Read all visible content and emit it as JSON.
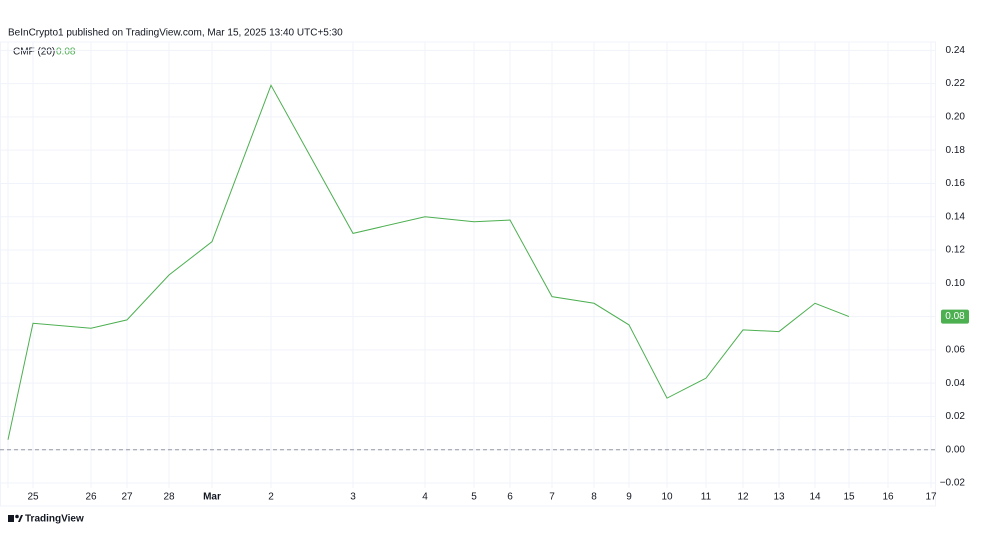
{
  "header": "BeInCrypto1 published on TradingView.com, Mar 15, 2025 13:40 UTC+5:30",
  "footer": "TradingView",
  "chart_data": {
    "type": "line",
    "categories": [
      null,
      "25",
      "26",
      "27",
      "28",
      "Mar",
      "2",
      "3",
      "4",
      "5",
      "6",
      "7",
      "8",
      "9",
      "10",
      "11",
      "12",
      "13",
      "14",
      "15",
      "16",
      "17"
    ],
    "series": [
      {
        "name": "CMF (20)",
        "color": "#4caf50",
        "values": [
          0.006,
          0.076,
          0.073,
          0.078,
          0.105,
          0.125,
          0.219,
          0.13,
          0.14,
          0.137,
          0.138,
          0.092,
          0.088,
          0.075,
          0.031,
          0.043,
          0.072,
          0.071,
          0.088,
          0.08,
          null,
          null
        ]
      }
    ],
    "ylim": [
      -0.023,
      0.245
    ],
    "yticks": [
      {
        "value": -0.02,
        "label": "−0.02"
      },
      {
        "value": 0,
        "label": "0.00"
      },
      0.02,
      0.04,
      0.06,
      0.08,
      {
        "value": 0.1,
        "label": "0.10"
      },
      0.12,
      0.14,
      0.16,
      0.18,
      {
        "value": 0.2,
        "label": "0.20"
      },
      0.22,
      0.24
    ],
    "reference_line": 0,
    "grid": true
  }
}
